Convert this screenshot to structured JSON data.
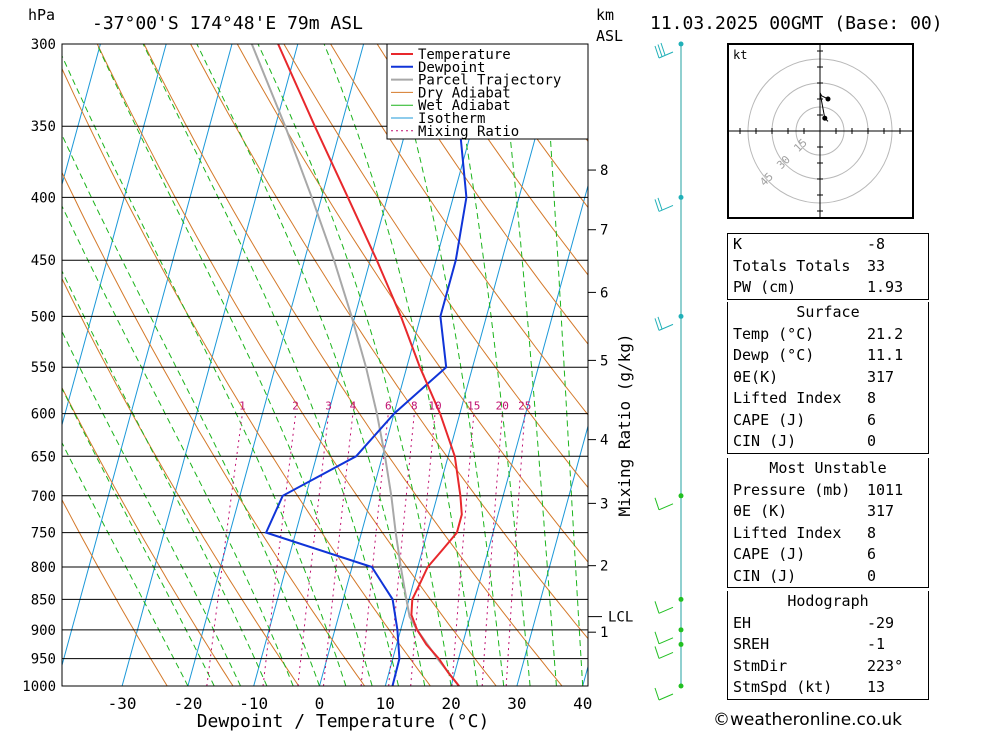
{
  "header": {
    "location": "-37°00'S 174°48'E 79m ASL",
    "datetime": "11.03.2025 00GMT (Base: 00)",
    "pressure_unit": "hPa",
    "height_unit": "km",
    "height_ref": "ASL"
  },
  "chart_data": {
    "type": "line",
    "title": "-37°00'S 174°48'E 79m ASL",
    "xlabel": "Dewpoint / Temperature (°C)",
    "ylabel": "hPa",
    "right_axis_label": "Mixing Ratio (g/kg)",
    "xlim": [
      -40,
      40
    ],
    "ylim": [
      1000,
      300
    ],
    "x_ticks": [
      "-30",
      "-20",
      "-10",
      "0",
      "10",
      "20",
      "30",
      "40"
    ],
    "pressure_levels": [
      "300",
      "350",
      "400",
      "450",
      "500",
      "550",
      "600",
      "650",
      "700",
      "750",
      "800",
      "850",
      "900",
      "950",
      "1000"
    ],
    "height_ticks": [
      {
        "label": "8",
        "p": 380
      },
      {
        "label": "7",
        "p": 425
      },
      {
        "label": "6",
        "p": 478
      },
      {
        "label": "5",
        "p": 543
      },
      {
        "label": "4",
        "p": 630
      },
      {
        "label": "3",
        "p": 710
      },
      {
        "label": "2",
        "p": 798
      },
      {
        "label": "1",
        "p": 904
      }
    ],
    "lcl": {
      "label": "LCL",
      "p": 878
    },
    "mixing_ratio_labels": [
      "1",
      "2",
      "3",
      "4",
      "6",
      "8",
      "10",
      "15",
      "20",
      "25"
    ],
    "mixing_ratios": [
      1,
      2,
      3,
      4,
      6,
      8,
      10,
      15,
      20,
      25
    ],
    "legend": [
      "Temperature",
      "Dewpoint",
      "Parcel Trajectory",
      "Dry Adiabat",
      "Wet Adiabat",
      "Isotherm",
      "Mixing Ratio"
    ],
    "colors": {
      "temperature": "#e8282c",
      "dewpoint": "#1034d8",
      "parcel": "#a8a8a8",
      "dry_adiabat": "#d4792a",
      "wet_adiabat": "#1cb41c",
      "isotherm": "#1c98d8",
      "mixing_ratio": "#c01070",
      "wind": "#20b0b8",
      "wind_low": "#22c022"
    },
    "series": [
      {
        "name": "Temperature",
        "points": [
          [
            1000,
            21.2
          ],
          [
            975,
            19
          ],
          [
            950,
            17
          ],
          [
            925,
            14.5
          ],
          [
            900,
            12.5
          ],
          [
            875,
            11
          ],
          [
            850,
            10.5
          ],
          [
            825,
            11
          ],
          [
            800,
            11.5
          ],
          [
            775,
            13
          ],
          [
            750,
            14.5
          ],
          [
            725,
            14.5
          ],
          [
            700,
            13.5
          ],
          [
            650,
            11
          ],
          [
            600,
            7
          ],
          [
            550,
            2
          ],
          [
            500,
            -3
          ],
          [
            450,
            -9
          ],
          [
            400,
            -16
          ],
          [
            350,
            -24
          ],
          [
            300,
            -33
          ]
        ]
      },
      {
        "name": "Dewpoint",
        "points": [
          [
            1000,
            11.1
          ],
          [
            950,
            11
          ],
          [
            900,
            9.5
          ],
          [
            850,
            7.5
          ],
          [
            800,
            3
          ],
          [
            750,
            -14.5
          ],
          [
            700,
            -13.5
          ],
          [
            650,
            -4
          ],
          [
            600,
            0
          ],
          [
            550,
            6
          ],
          [
            500,
            3
          ],
          [
            450,
            3
          ],
          [
            400,
            2
          ],
          [
            350,
            -2
          ],
          [
            300,
            -3
          ]
        ]
      },
      {
        "name": "Parcel Trajectory",
        "points": [
          [
            1000,
            21.2
          ],
          [
            950,
            16.8
          ],
          [
            900,
            12.5
          ],
          [
            878,
            10.8
          ],
          [
            850,
            9.6
          ],
          [
            800,
            7.4
          ],
          [
            750,
            5.2
          ],
          [
            700,
            3
          ],
          [
            650,
            0.4
          ],
          [
            600,
            -2.6
          ],
          [
            550,
            -6.2
          ],
          [
            500,
            -10.5
          ],
          [
            450,
            -15.5
          ],
          [
            400,
            -21.5
          ],
          [
            350,
            -28.5
          ],
          [
            300,
            -37
          ]
        ]
      }
    ],
    "winds": [
      {
        "p": 1000,
        "dir": 225,
        "speed": 13,
        "level": "low"
      },
      {
        "p": 925,
        "dir": 230,
        "speed": 12,
        "level": "low"
      },
      {
        "p": 900,
        "dir": 230,
        "speed": 12,
        "level": "low"
      },
      {
        "p": 850,
        "dir": 245,
        "speed": 10,
        "level": "low"
      },
      {
        "p": 700,
        "dir": 260,
        "speed": 8,
        "level": "low"
      },
      {
        "p": 500,
        "dir": 270,
        "speed": 15,
        "level": "high"
      },
      {
        "p": 400,
        "dir": 240,
        "speed": 20,
        "level": "high"
      },
      {
        "p": 300,
        "dir": 250,
        "speed": 25,
        "level": "high"
      }
    ]
  },
  "hodograph": {
    "unit": "kt",
    "ring_labels": [
      "15",
      "30",
      "45"
    ],
    "path": [
      [
        3,
        8
      ],
      [
        4,
        7
      ],
      [
        5,
        6
      ],
      [
        3,
        8
      ],
      [
        0,
        24
      ],
      [
        1,
        22
      ],
      [
        5,
        20
      ]
    ]
  },
  "indices": {
    "top": [
      {
        "label": "K",
        "value": "-8"
      },
      {
        "label": "Totals Totals",
        "value": "33"
      },
      {
        "label": "PW (cm)",
        "value": "1.93"
      }
    ],
    "surface": {
      "header": "Surface",
      "rows": [
        {
          "label": "Temp (°C)",
          "value": "21.2"
        },
        {
          "label": "Dewp (°C)",
          "value": "11.1"
        },
        {
          "label": "θE(K)",
          "value": "317"
        },
        {
          "label": "Lifted Index",
          "value": "8"
        },
        {
          "label": "CAPE (J)",
          "value": "6"
        },
        {
          "label": "CIN (J)",
          "value": "0"
        }
      ]
    },
    "most_unstable": {
      "header": "Most Unstable",
      "rows": [
        {
          "label": "Pressure (mb)",
          "value": "1011"
        },
        {
          "label": "θE (K)",
          "value": "317"
        },
        {
          "label": "Lifted Index",
          "value": "8"
        },
        {
          "label": "CAPE (J)",
          "value": "6"
        },
        {
          "label": "CIN (J)",
          "value": "0"
        }
      ]
    },
    "hodograph": {
      "header": "Hodograph",
      "rows": [
        {
          "label": "EH",
          "value": "-29"
        },
        {
          "label": "SREH",
          "value": "-1"
        },
        {
          "label": "StmDir",
          "value": "223°"
        },
        {
          "label": "StmSpd (kt)",
          "value": "13"
        }
      ]
    }
  },
  "footer": {
    "credit": "©weatheronline.co.uk"
  }
}
